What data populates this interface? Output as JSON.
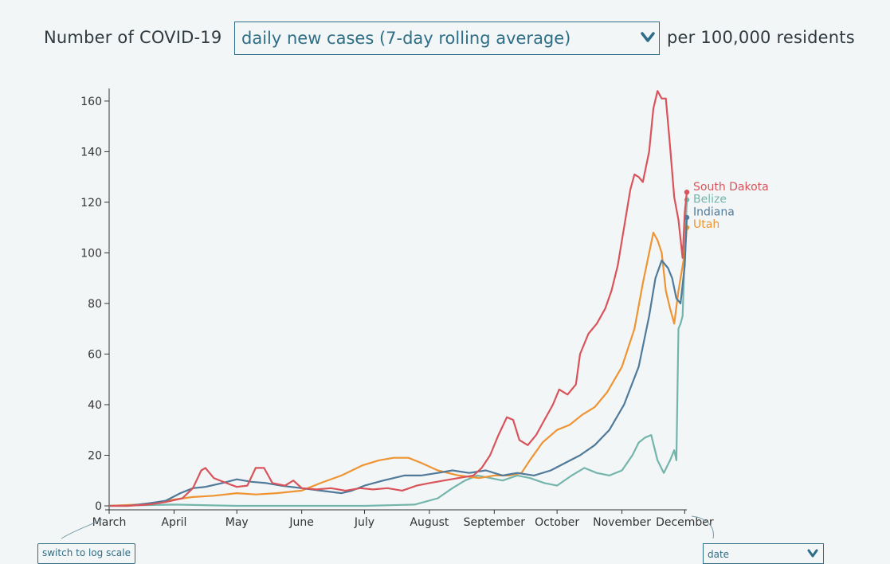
{
  "title": {
    "prefix": "Number of COVID-19",
    "metric_selected": "daily new cases (7-day rolling average)",
    "suffix": "per 100,000 residents"
  },
  "controls": {
    "scale_button_label": "switch to log scale",
    "x_axis_selected": "date"
  },
  "colors": {
    "South Dakota": "#d9535a",
    "Belize": "#74b5ab",
    "Indiana": "#4f7a9a",
    "Utah": "#ee9432",
    "accent": "#2e6e87"
  },
  "icons": [
    "chevron-down-icon"
  ],
  "chart_data": {
    "type": "line",
    "title": "",
    "xlabel": "",
    "ylabel": "",
    "ylim": [
      0,
      165
    ],
    "xlim": [
      "2020-03-01",
      "2020-12-02"
    ],
    "grid": false,
    "legend": "end-of-line labels, top-right",
    "y_ticks": [
      0,
      20,
      40,
      60,
      80,
      100,
      120,
      140,
      160
    ],
    "x_ticks": [
      {
        "label": "March",
        "date": "2020-03-01"
      },
      {
        "label": "April",
        "date": "2020-04-01"
      },
      {
        "label": "May",
        "date": "2020-05-01"
      },
      {
        "label": "June",
        "date": "2020-06-01"
      },
      {
        "label": "July",
        "date": "2020-07-01"
      },
      {
        "label": "August",
        "date": "2020-08-01"
      },
      {
        "label": "September",
        "date": "2020-09-01"
      },
      {
        "label": "October",
        "date": "2020-10-01"
      },
      {
        "label": "November",
        "date": "2020-11-01"
      },
      {
        "label": "December",
        "date": "2020-12-01"
      }
    ],
    "series": [
      {
        "name": "South Dakota",
        "points": [
          [
            "2020-03-01",
            0
          ],
          [
            "2020-03-10",
            0
          ],
          [
            "2020-03-20",
            0.5
          ],
          [
            "2020-03-28",
            1.5
          ],
          [
            "2020-04-05",
            3
          ],
          [
            "2020-04-10",
            7
          ],
          [
            "2020-04-14",
            14
          ],
          [
            "2020-04-16",
            15
          ],
          [
            "2020-04-20",
            11
          ],
          [
            "2020-04-26",
            9
          ],
          [
            "2020-05-01",
            7.5
          ],
          [
            "2020-05-06",
            8
          ],
          [
            "2020-05-10",
            15
          ],
          [
            "2020-05-14",
            15
          ],
          [
            "2020-05-18",
            9
          ],
          [
            "2020-05-24",
            8
          ],
          [
            "2020-05-28",
            10
          ],
          [
            "2020-06-01",
            7
          ],
          [
            "2020-06-08",
            6.5
          ],
          [
            "2020-06-15",
            7
          ],
          [
            "2020-06-22",
            6
          ],
          [
            "2020-06-29",
            7
          ],
          [
            "2020-07-05",
            6.5
          ],
          [
            "2020-07-12",
            7
          ],
          [
            "2020-07-19",
            6
          ],
          [
            "2020-07-26",
            8
          ],
          [
            "2020-08-01",
            9
          ],
          [
            "2020-08-08",
            10
          ],
          [
            "2020-08-15",
            11
          ],
          [
            "2020-08-22",
            12
          ],
          [
            "2020-08-26",
            15
          ],
          [
            "2020-08-30",
            20
          ],
          [
            "2020-09-03",
            28
          ],
          [
            "2020-09-07",
            35
          ],
          [
            "2020-09-10",
            34
          ],
          [
            "2020-09-13",
            26
          ],
          [
            "2020-09-17",
            24
          ],
          [
            "2020-09-21",
            28
          ],
          [
            "2020-09-25",
            34
          ],
          [
            "2020-09-29",
            40
          ],
          [
            "2020-10-02",
            46
          ],
          [
            "2020-10-06",
            44
          ],
          [
            "2020-10-10",
            48
          ],
          [
            "2020-10-12",
            60
          ],
          [
            "2020-10-16",
            68
          ],
          [
            "2020-10-20",
            72
          ],
          [
            "2020-10-24",
            78
          ],
          [
            "2020-10-27",
            85
          ],
          [
            "2020-10-30",
            95
          ],
          [
            "2020-11-02",
            110
          ],
          [
            "2020-11-05",
            125
          ],
          [
            "2020-11-07",
            131
          ],
          [
            "2020-11-09",
            130
          ],
          [
            "2020-11-11",
            128
          ],
          [
            "2020-11-14",
            140
          ],
          [
            "2020-11-16",
            157
          ],
          [
            "2020-11-18",
            164
          ],
          [
            "2020-11-20",
            161
          ],
          [
            "2020-11-22",
            161
          ],
          [
            "2020-11-24",
            142
          ],
          [
            "2020-11-26",
            122
          ],
          [
            "2020-11-28",
            113
          ],
          [
            "2020-11-30",
            98
          ],
          [
            "2020-12-01",
            116
          ],
          [
            "2020-12-02",
            124
          ]
        ]
      },
      {
        "name": "Belize",
        "points": [
          [
            "2020-03-01",
            0
          ],
          [
            "2020-04-01",
            0.5
          ],
          [
            "2020-05-01",
            0
          ],
          [
            "2020-06-01",
            0
          ],
          [
            "2020-07-01",
            0
          ],
          [
            "2020-07-25",
            0.5
          ],
          [
            "2020-08-05",
            3
          ],
          [
            "2020-08-12",
            7
          ],
          [
            "2020-08-18",
            10
          ],
          [
            "2020-08-24",
            12
          ],
          [
            "2020-08-30",
            11
          ],
          [
            "2020-09-05",
            10
          ],
          [
            "2020-09-12",
            12
          ],
          [
            "2020-09-18",
            11
          ],
          [
            "2020-09-25",
            9
          ],
          [
            "2020-10-01",
            8
          ],
          [
            "2020-10-08",
            12
          ],
          [
            "2020-10-14",
            15
          ],
          [
            "2020-10-20",
            13
          ],
          [
            "2020-10-26",
            12
          ],
          [
            "2020-11-01",
            14
          ],
          [
            "2020-11-06",
            20
          ],
          [
            "2020-11-09",
            25
          ],
          [
            "2020-11-12",
            27
          ],
          [
            "2020-11-15",
            28
          ],
          [
            "2020-11-18",
            18
          ],
          [
            "2020-11-21",
            13
          ],
          [
            "2020-11-24",
            18
          ],
          [
            "2020-11-26",
            22
          ],
          [
            "2020-11-27",
            18
          ],
          [
            "2020-11-28",
            70
          ],
          [
            "2020-11-29",
            72
          ],
          [
            "2020-11-30",
            75
          ],
          [
            "2020-12-01",
            100
          ],
          [
            "2020-12-02",
            121
          ]
        ]
      },
      {
        "name": "Indiana",
        "points": [
          [
            "2020-03-01",
            0
          ],
          [
            "2020-03-10",
            0
          ],
          [
            "2020-03-20",
            1
          ],
          [
            "2020-03-28",
            2
          ],
          [
            "2020-04-04",
            5
          ],
          [
            "2020-04-10",
            7
          ],
          [
            "2020-04-16",
            7.5
          ],
          [
            "2020-04-24",
            9
          ],
          [
            "2020-05-01",
            10.5
          ],
          [
            "2020-05-08",
            9.5
          ],
          [
            "2020-05-15",
            9
          ],
          [
            "2020-05-22",
            8
          ],
          [
            "2020-06-01",
            7
          ],
          [
            "2020-06-10",
            6
          ],
          [
            "2020-06-20",
            5
          ],
          [
            "2020-06-25",
            6
          ],
          [
            "2020-07-01",
            8
          ],
          [
            "2020-07-10",
            10
          ],
          [
            "2020-07-20",
            12
          ],
          [
            "2020-07-28",
            12
          ],
          [
            "2020-08-05",
            13
          ],
          [
            "2020-08-12",
            14
          ],
          [
            "2020-08-20",
            13
          ],
          [
            "2020-08-28",
            14
          ],
          [
            "2020-09-05",
            12
          ],
          [
            "2020-09-12",
            13
          ],
          [
            "2020-09-20",
            12
          ],
          [
            "2020-09-28",
            14
          ],
          [
            "2020-10-05",
            17
          ],
          [
            "2020-10-12",
            20
          ],
          [
            "2020-10-19",
            24
          ],
          [
            "2020-10-26",
            30
          ],
          [
            "2020-11-02",
            40
          ],
          [
            "2020-11-09",
            55
          ],
          [
            "2020-11-14",
            75
          ],
          [
            "2020-11-17",
            90
          ],
          [
            "2020-11-20",
            97
          ],
          [
            "2020-11-23",
            94
          ],
          [
            "2020-11-25",
            90
          ],
          [
            "2020-11-27",
            82
          ],
          [
            "2020-11-29",
            80
          ],
          [
            "2020-12-01",
            95
          ],
          [
            "2020-12-02",
            114
          ]
        ]
      },
      {
        "name": "Utah",
        "points": [
          [
            "2020-03-01",
            0
          ],
          [
            "2020-03-15",
            0.5
          ],
          [
            "2020-03-25",
            1.5
          ],
          [
            "2020-04-01",
            2.5
          ],
          [
            "2020-04-10",
            3.5
          ],
          [
            "2020-04-20",
            4
          ],
          [
            "2020-05-01",
            5
          ],
          [
            "2020-05-10",
            4.5
          ],
          [
            "2020-05-20",
            5
          ],
          [
            "2020-06-01",
            6
          ],
          [
            "2020-06-10",
            9
          ],
          [
            "2020-06-20",
            12
          ],
          [
            "2020-06-30",
            16
          ],
          [
            "2020-07-08",
            18
          ],
          [
            "2020-07-15",
            19
          ],
          [
            "2020-07-22",
            19
          ],
          [
            "2020-07-28",
            17
          ],
          [
            "2020-08-05",
            14
          ],
          [
            "2020-08-15",
            12
          ],
          [
            "2020-08-25",
            11
          ],
          [
            "2020-09-01",
            12
          ],
          [
            "2020-09-08",
            12
          ],
          [
            "2020-09-14",
            13
          ],
          [
            "2020-09-18",
            18
          ],
          [
            "2020-09-24",
            25
          ],
          [
            "2020-10-01",
            30
          ],
          [
            "2020-10-07",
            32
          ],
          [
            "2020-10-13",
            36
          ],
          [
            "2020-10-19",
            39
          ],
          [
            "2020-10-25",
            45
          ],
          [
            "2020-11-01",
            55
          ],
          [
            "2020-11-07",
            70
          ],
          [
            "2020-11-11",
            88
          ],
          [
            "2020-11-14",
            100
          ],
          [
            "2020-11-16",
            108
          ],
          [
            "2020-11-18",
            105
          ],
          [
            "2020-11-20",
            100
          ],
          [
            "2020-11-22",
            85
          ],
          [
            "2020-11-24",
            78
          ],
          [
            "2020-11-26",
            72
          ],
          [
            "2020-11-28",
            85
          ],
          [
            "2020-12-01",
            100
          ],
          [
            "2020-12-02",
            110
          ]
        ]
      }
    ]
  }
}
